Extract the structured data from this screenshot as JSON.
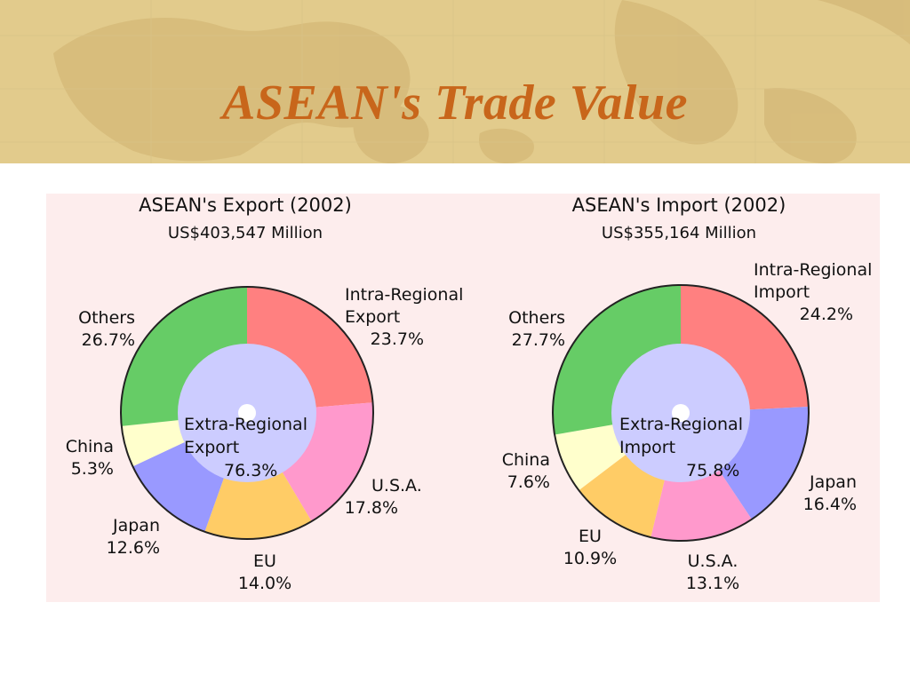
{
  "slide": {
    "title": "ASEAN's Trade Value"
  },
  "colors": {
    "title": "#c8661b",
    "header_bg": "#e2cb8c",
    "panel_bg": "#fdeded",
    "inner_ring": "#ccccff"
  },
  "chart_data": [
    {
      "type": "pie",
      "title": "ASEAN's Export (2002)",
      "subtitle": "US$403,547 Million",
      "inner": {
        "label_lines": [
          "Extra-Regional",
          "Export"
        ],
        "value_label": "76.3%",
        "value": 76.3
      },
      "slices": [
        {
          "label_lines": [
            "Intra-Regional",
            "Export"
          ],
          "value_label": "23.7%",
          "value": 23.7,
          "color": "#ff8080"
        },
        {
          "label_lines": [
            "U.S.A."
          ],
          "value_label": "17.8%",
          "value": 17.8,
          "color": "#ff99cc"
        },
        {
          "label_lines": [
            "EU"
          ],
          "value_label": "14.0%",
          "value": 14.0,
          "color": "#ffcc66"
        },
        {
          "label_lines": [
            "Japan"
          ],
          "value_label": "12.6%",
          "value": 12.6,
          "color": "#9999ff"
        },
        {
          "label_lines": [
            "China"
          ],
          "value_label": "5.3%",
          "value": 5.3,
          "color": "#ffffcc"
        },
        {
          "label_lines": [
            "Others"
          ],
          "value_label": "26.7%",
          "value": 26.7,
          "color": "#66cc66"
        }
      ]
    },
    {
      "type": "pie",
      "title": "ASEAN's Import (2002)",
      "subtitle": "US$355,164 Million",
      "inner": {
        "label_lines": [
          "Extra-Regional",
          "Import"
        ],
        "value_label": "75.8%",
        "value": 75.8
      },
      "slices": [
        {
          "label_lines": [
            "Intra-Regional",
            "Import"
          ],
          "value_label": "24.2%",
          "value": 24.2,
          "color": "#ff8080"
        },
        {
          "label_lines": [
            "Japan"
          ],
          "value_label": "16.4%",
          "value": 16.4,
          "color": "#9999ff"
        },
        {
          "label_lines": [
            "U.S.A."
          ],
          "value_label": "13.1%",
          "value": 13.1,
          "color": "#ff99cc"
        },
        {
          "label_lines": [
            "EU"
          ],
          "value_label": "10.9%",
          "value": 10.9,
          "color": "#ffcc66"
        },
        {
          "label_lines": [
            "China"
          ],
          "value_label": "7.6%",
          "value": 7.6,
          "color": "#ffffcc"
        },
        {
          "label_lines": [
            "Others"
          ],
          "value_label": "27.7%",
          "value": 27.7,
          "color": "#66cc66"
        }
      ]
    }
  ]
}
